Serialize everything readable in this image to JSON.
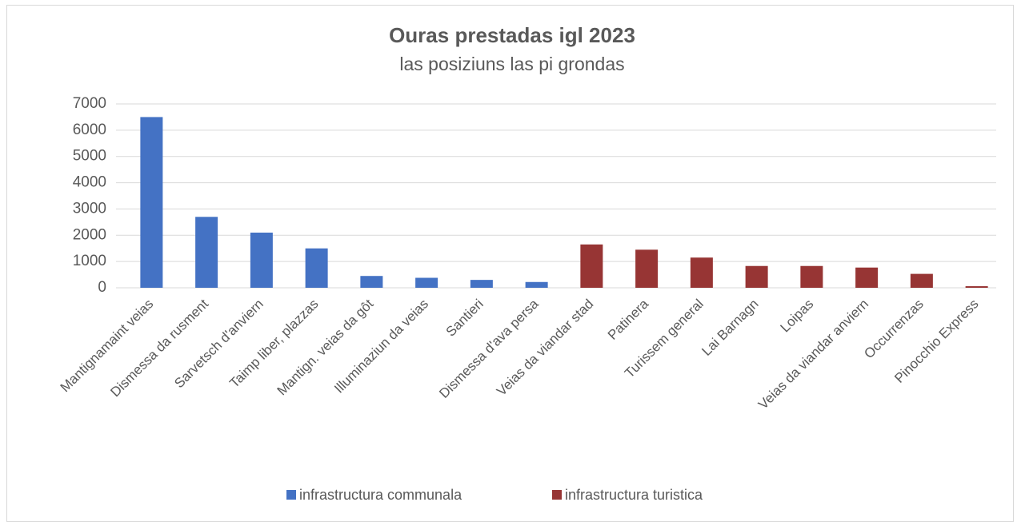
{
  "chart_data": {
    "type": "bar",
    "title": "Ouras prestadas igl 2023",
    "subtitle": "las posiziuns las pi grondas",
    "categories": [
      "Mantignamaint veias",
      "Dismessa da rusment",
      "Sarvetsch d'anviern",
      "Taimp liber, plazzas",
      "Mantign. veias da gôt",
      "Illuminaziun da veias",
      "Santieri",
      "Dismessa d'ava persa",
      "Veias da viandar stad",
      "Patinera",
      "Turissem general",
      "Lai Barnagn",
      "Loipas",
      "Veias da viandar anviern",
      "Occurrenzas",
      "Pinocchio Express"
    ],
    "series": [
      {
        "name": "infrastructura communala",
        "color": "#4472c4",
        "values": [
          6500,
          2700,
          2100,
          1500,
          450,
          380,
          300,
          220,
          null,
          null,
          null,
          null,
          null,
          null,
          null,
          null
        ]
      },
      {
        "name": "infrastructura turistica",
        "color": "#973534",
        "values": [
          null,
          null,
          null,
          null,
          null,
          null,
          null,
          null,
          1650,
          1450,
          1150,
          830,
          830,
          770,
          530,
          60
        ]
      }
    ],
    "ylim": [
      0,
      7000
    ],
    "yticks": [
      0,
      1000,
      2000,
      3000,
      4000,
      5000,
      6000,
      7000
    ],
    "grid": true,
    "legend": "bottom"
  }
}
